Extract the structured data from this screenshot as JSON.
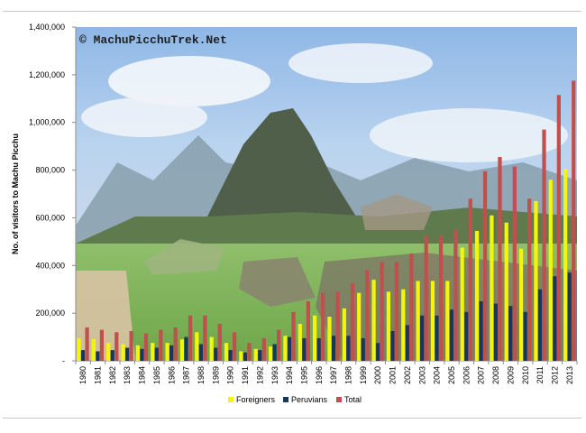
{
  "chart_data": {
    "type": "bar",
    "ylabel": "No. of visitors to Machu Picchu",
    "watermark": "© MachuPicchuTrek.Net",
    "ylim": [
      0,
      1400000
    ],
    "y_ticks": [
      "-",
      "200,000",
      "400,000",
      "600,000",
      "800,000",
      "1,000,000",
      "1,200,000",
      "1,400,000"
    ],
    "categories": [
      "1980",
      "1981",
      "1982",
      "1983",
      "1984",
      "1985",
      "1986",
      "1987",
      "1988",
      "1989",
      "1990",
      "1991",
      "1992",
      "1993",
      "1994",
      "1995",
      "1996",
      "1997",
      "1998",
      "1999",
      "2000",
      "2001",
      "2002",
      "2003",
      "2004",
      "2005",
      "2006",
      "2007",
      "2008",
      "2009",
      "2010",
      "2011",
      "2012",
      "2013"
    ],
    "series": [
      {
        "name": "Foreigners",
        "color": "#f5f50a",
        "values": [
          95000,
          90000,
          75000,
          70000,
          65000,
          75000,
          75000,
          90000,
          120000,
          100000,
          75000,
          40000,
          50000,
          60000,
          105000,
          155000,
          190000,
          185000,
          220000,
          285000,
          340000,
          290000,
          300000,
          335000,
          335000,
          335000,
          475000,
          545000,
          610000,
          580000,
          470000,
          670000,
          760000,
          805000
        ]
      },
      {
        "name": "Peruvians",
        "color": "#17375e",
        "values": [
          45000,
          40000,
          45000,
          55000,
          50000,
          55000,
          65000,
          100000,
          70000,
          55000,
          45000,
          35000,
          45000,
          70000,
          100000,
          95000,
          95000,
          105000,
          105000,
          95000,
          75000,
          125000,
          150000,
          190000,
          190000,
          215000,
          205000,
          250000,
          240000,
          230000,
          205000,
          300000,
          355000,
          370000
        ]
      },
      {
        "name": "Total",
        "color": "#c0504d",
        "values": [
          140000,
          130000,
          120000,
          125000,
          115000,
          130000,
          140000,
          190000,
          190000,
          155000,
          120000,
          75000,
          95000,
          130000,
          205000,
          250000,
          285000,
          290000,
          325000,
          380000,
          415000,
          415000,
          450000,
          525000,
          525000,
          550000,
          680000,
          795000,
          855000,
          815000,
          680000,
          970000,
          1115000,
          1175000
        ]
      }
    ],
    "legend_position": "bottom"
  }
}
